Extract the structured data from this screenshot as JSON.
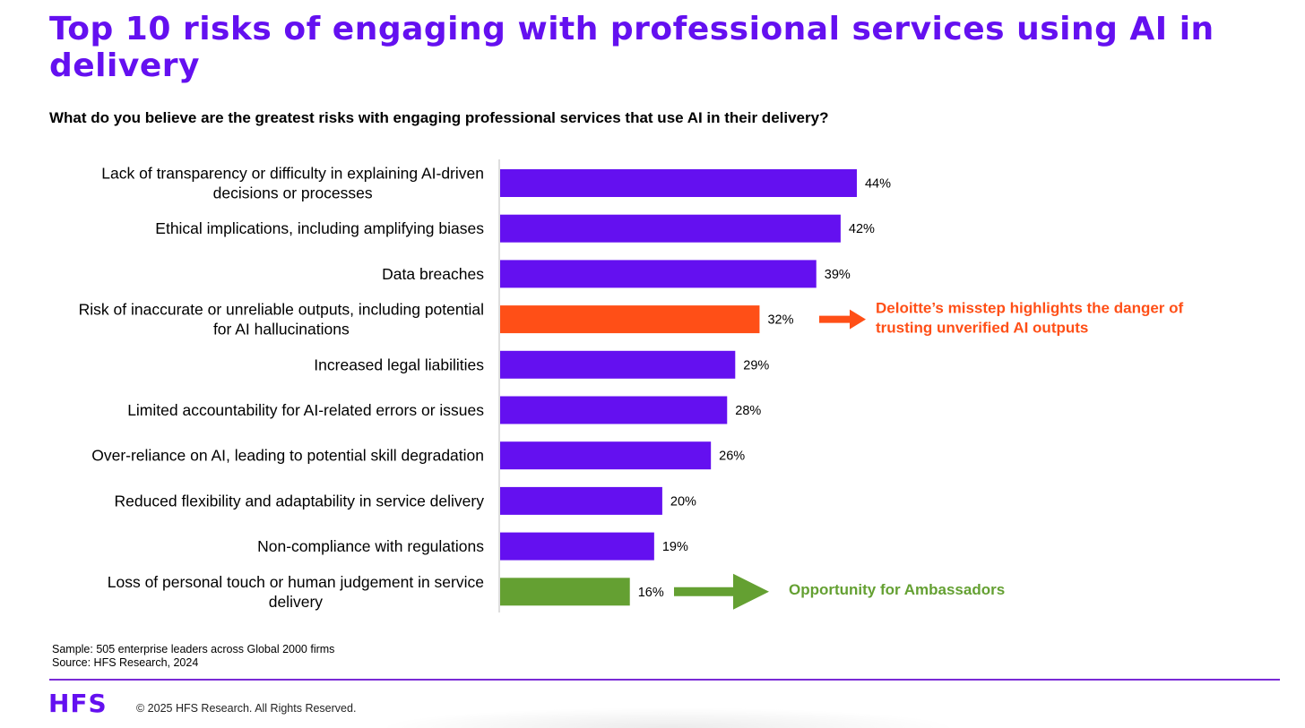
{
  "header": {
    "title": "Top 10 risks of engaging with professional services using AI in delivery",
    "question": "What do you believe are the greatest risks with engaging professional services that use AI in their delivery?"
  },
  "chart_data": {
    "type": "bar",
    "orientation": "horizontal",
    "categories": [
      "Lack of transparency or difficulty in explaining AI-driven decisions or processes",
      "Ethical implications, including amplifying biases",
      "Data breaches",
      "Risk of inaccurate or unreliable outputs, including potential for AI hallucinations",
      "Increased legal liabilities",
      "Limited accountability for AI-related errors or issues",
      "Over-reliance on AI, leading to potential skill degradation",
      "Reduced flexibility and adaptability in service delivery",
      "Non-compliance with regulations",
      "Loss of personal touch or human judgement in service delivery"
    ],
    "category_lines": [
      [
        "Lack of transparency or difficulty in explaining AI-driven",
        "decisions or processes"
      ],
      [
        "Ethical implications, including amplifying biases"
      ],
      [
        "Data breaches"
      ],
      [
        "Risk of inaccurate or unreliable outputs, including potential",
        "for AI hallucinations"
      ],
      [
        "Increased legal liabilities"
      ],
      [
        "Limited accountability for AI-related errors or issues"
      ],
      [
        "Over-reliance on AI, leading to potential skill degradation"
      ],
      [
        "Reduced flexibility and adaptability in service delivery"
      ],
      [
        "Non-compliance with regulations"
      ],
      [
        "Loss of personal touch or human judgement in service",
        "delivery"
      ]
    ],
    "values": [
      44,
      42,
      39,
      32,
      29,
      28,
      26,
      20,
      19,
      16
    ],
    "value_labels": [
      "44%",
      "42%",
      "39%",
      "32%",
      "29%",
      "28%",
      "26%",
      "20%",
      "19%",
      "16%"
    ],
    "bar_colors": [
      "#6410f0",
      "#6410f0",
      "#6410f0",
      "#ff4f17",
      "#6410f0",
      "#6410f0",
      "#6410f0",
      "#6410f0",
      "#6410f0",
      "#64a032"
    ],
    "xlim": [
      0,
      44
    ],
    "grid": false,
    "legend": "none",
    "annotations": [
      {
        "bar_index": 3,
        "text_lines": [
          "Deloitte’s misstep highlights the danger of",
          "trusting unverified AI outputs"
        ],
        "color": "#ff4f17"
      },
      {
        "bar_index": 9,
        "text_lines": [
          "Opportunity for Ambassadors"
        ],
        "color": "#64a032"
      }
    ]
  },
  "footer": {
    "sample": "Sample: 505 enterprise leaders across Global 2000 firms",
    "source": "Source: HFS Research, 2024",
    "logo_text": "HFS",
    "copyright": "© 2025 HFS Research. All Rights Reserved."
  }
}
